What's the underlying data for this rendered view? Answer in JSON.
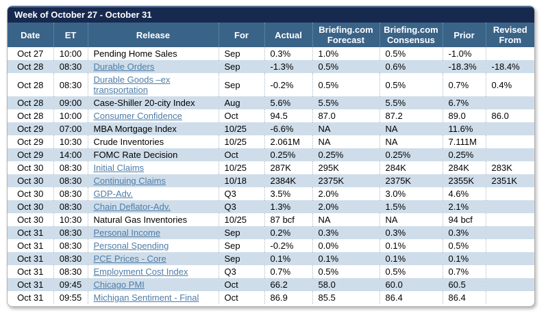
{
  "title": "Week of October 27 - October 31",
  "colors": {
    "title_bar": "#17294E",
    "header_bar": "#3A6388",
    "row_stripe": "#CEDDE9",
    "link": "#4E7CA8"
  },
  "columns": [
    {
      "key": "date",
      "label": "Date"
    },
    {
      "key": "et",
      "label": "ET"
    },
    {
      "key": "release",
      "label": "Release"
    },
    {
      "key": "for",
      "label": "For"
    },
    {
      "key": "actual",
      "label": "Actual"
    },
    {
      "key": "forecast",
      "label": "Briefing.com Forecast"
    },
    {
      "key": "consensus",
      "label": "Briefing.com Consensus"
    },
    {
      "key": "prior",
      "label": "Prior"
    },
    {
      "key": "revised",
      "label": "Revised From"
    }
  ],
  "rows": [
    {
      "date": "Oct 27",
      "et": "10:00",
      "release": "Pending Home Sales",
      "link": false,
      "for": "Sep",
      "actual": "0.3%",
      "forecast": "1.0%",
      "consensus": "0.5%",
      "prior": "-1.0%",
      "revised": ""
    },
    {
      "date": "Oct 28",
      "et": "08:30",
      "release": "Durable Orders",
      "link": true,
      "for": "Sep",
      "actual": "-1.3%",
      "forecast": "0.5%",
      "consensus": "0.6%",
      "prior": "-18.3%",
      "revised": "-18.4%"
    },
    {
      "date": "Oct 28",
      "et": "08:30",
      "release": "Durable Goods –ex transportation",
      "link": true,
      "for": "Sep",
      "actual": "-0.2%",
      "forecast": "0.5%",
      "consensus": "0.5%",
      "prior": "0.7%",
      "revised": "0.4%"
    },
    {
      "date": "Oct 28",
      "et": "09:00",
      "release": "Case-Shiller 20-city Index",
      "link": false,
      "for": "Aug",
      "actual": "5.6%",
      "forecast": "5.5%",
      "consensus": "5.5%",
      "prior": "6.7%",
      "revised": ""
    },
    {
      "date": "Oct 28",
      "et": "10:00",
      "release": "Consumer Confidence",
      "link": true,
      "for": "Oct",
      "actual": "94.5",
      "forecast": "87.0",
      "consensus": "87.2",
      "prior": "89.0",
      "revised": "86.0"
    },
    {
      "date": "Oct 29",
      "et": "07:00",
      "release": "MBA Mortgage Index",
      "link": false,
      "for": "10/25",
      "actual": "-6.6%",
      "forecast": "NA",
      "consensus": "NA",
      "prior": "11.6%",
      "revised": ""
    },
    {
      "date": "Oct 29",
      "et": "10:30",
      "release": "Crude Inventories",
      "link": false,
      "for": "10/25",
      "actual": "2.061M",
      "forecast": "NA",
      "consensus": "NA",
      "prior": "7.111M",
      "revised": ""
    },
    {
      "date": "Oct 29",
      "et": "14:00",
      "release": "FOMC Rate Decision",
      "link": false,
      "for": "Oct",
      "actual": "0.25%",
      "forecast": "0.25%",
      "consensus": "0.25%",
      "prior": "0.25%",
      "revised": ""
    },
    {
      "date": "Oct 30",
      "et": "08:30",
      "release": "Initial Claims",
      "link": true,
      "for": "10/25",
      "actual": "287K",
      "forecast": "295K",
      "consensus": "284K",
      "prior": "284K",
      "revised": "283K"
    },
    {
      "date": "Oct 30",
      "et": "08:30",
      "release": "Continuing Claims",
      "link": true,
      "for": "10/18",
      "actual": "2384K",
      "forecast": "2375K",
      "consensus": "2375K",
      "prior": "2355K",
      "revised": "2351K"
    },
    {
      "date": "Oct 30",
      "et": "08:30",
      "release": "GDP-Adv.",
      "link": true,
      "for": "Q3",
      "actual": "3.5%",
      "forecast": "2.0%",
      "consensus": "3.0%",
      "prior": "4.6%",
      "revised": ""
    },
    {
      "date": "Oct 30",
      "et": "08:30",
      "release": "Chain Deflator-Adv.",
      "link": true,
      "for": "Q3",
      "actual": "1.3%",
      "forecast": "2.0%",
      "consensus": "1.5%",
      "prior": "2.1%",
      "revised": ""
    },
    {
      "date": "Oct 30",
      "et": "10:30",
      "release": "Natural Gas Inventories",
      "link": false,
      "for": "10/25",
      "actual": "87 bcf",
      "forecast": "NA",
      "consensus": "NA",
      "prior": "94 bcf",
      "revised": ""
    },
    {
      "date": "Oct 31",
      "et": "08:30",
      "release": "Personal Income",
      "link": true,
      "for": "Sep",
      "actual": "0.2%",
      "forecast": "0.3%",
      "consensus": "0.3%",
      "prior": "0.3%",
      "revised": ""
    },
    {
      "date": "Oct 31",
      "et": "08:30",
      "release": "Personal Spending",
      "link": true,
      "for": "Sep",
      "actual": "-0.2%",
      "forecast": "0.0%",
      "consensus": "0.1%",
      "prior": "0.5%",
      "revised": ""
    },
    {
      "date": "Oct 31",
      "et": "08:30",
      "release": "PCE Prices - Core",
      "link": true,
      "for": "Sep",
      "actual": "0.1%",
      "forecast": "0.1%",
      "consensus": "0.1%",
      "prior": "0.1%",
      "revised": ""
    },
    {
      "date": "Oct 31",
      "et": "08:30",
      "release": "Employment Cost Index",
      "link": true,
      "for": "Q3",
      "actual": "0.7%",
      "forecast": "0.5%",
      "consensus": "0.5%",
      "prior": "0.7%",
      "revised": ""
    },
    {
      "date": "Oct 31",
      "et": "09:45",
      "release": "Chicago PMI",
      "link": true,
      "for": "Oct",
      "actual": "66.2",
      "forecast": "58.0",
      "consensus": "60.0",
      "prior": "60.5",
      "revised": ""
    },
    {
      "date": "Oct 31",
      "et": "09:55",
      "release": "Michigan Sentiment - Final",
      "link": true,
      "for": "Oct",
      "actual": "86.9",
      "forecast": "85.5",
      "consensus": "86.4",
      "prior": "86.4",
      "revised": ""
    }
  ]
}
